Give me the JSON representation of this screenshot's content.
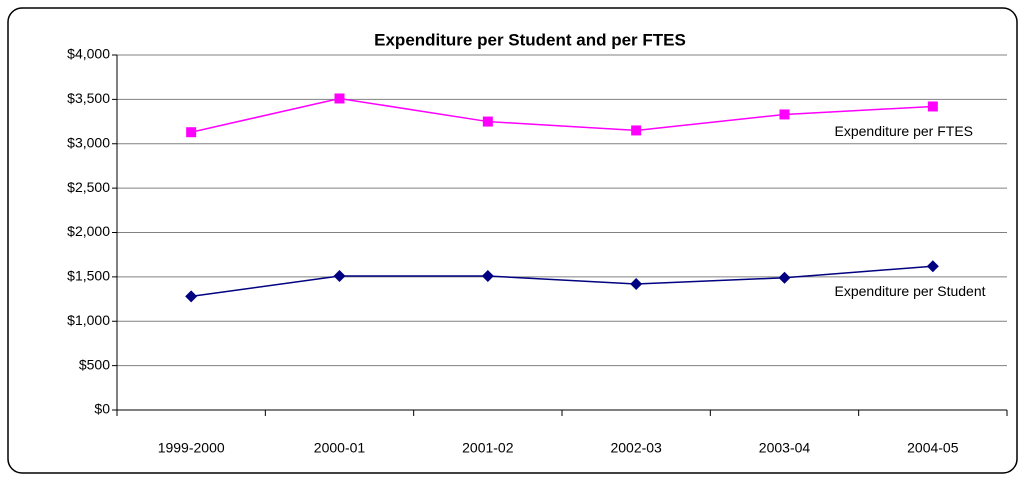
{
  "chart_data": {
    "type": "line",
    "title": "Expenditure per Student and per FTES",
    "categories": [
      "1999-2000",
      "2000-01",
      "2001-02",
      "2002-03",
      "2003-04",
      "2004-05"
    ],
    "series": [
      {
        "name": "Expenditure per FTES",
        "color": "#ff00ff",
        "marker": "square",
        "values": [
          3130,
          3510,
          3250,
          3150,
          3330,
          3420
        ]
      },
      {
        "name": "Expenditure per Student",
        "color": "#000080",
        "marker": "diamond",
        "values": [
          1280,
          1510,
          1510,
          1420,
          1490,
          1620
        ]
      }
    ],
    "ylim": [
      0,
      4000
    ],
    "yticks": [
      {
        "value": 0,
        "label": "$0"
      },
      {
        "value": 500,
        "label": "$500"
      },
      {
        "value": 1000,
        "label": "$1,000"
      },
      {
        "value": 1500,
        "label": "$1,500"
      },
      {
        "value": 2000,
        "label": "$2,000"
      },
      {
        "value": 2500,
        "label": "$2,500"
      },
      {
        "value": 3000,
        "label": "$3,000"
      },
      {
        "value": 3500,
        "label": "$3,500"
      },
      {
        "value": 4000,
        "label": "$4,000"
      }
    ],
    "grid": true
  }
}
